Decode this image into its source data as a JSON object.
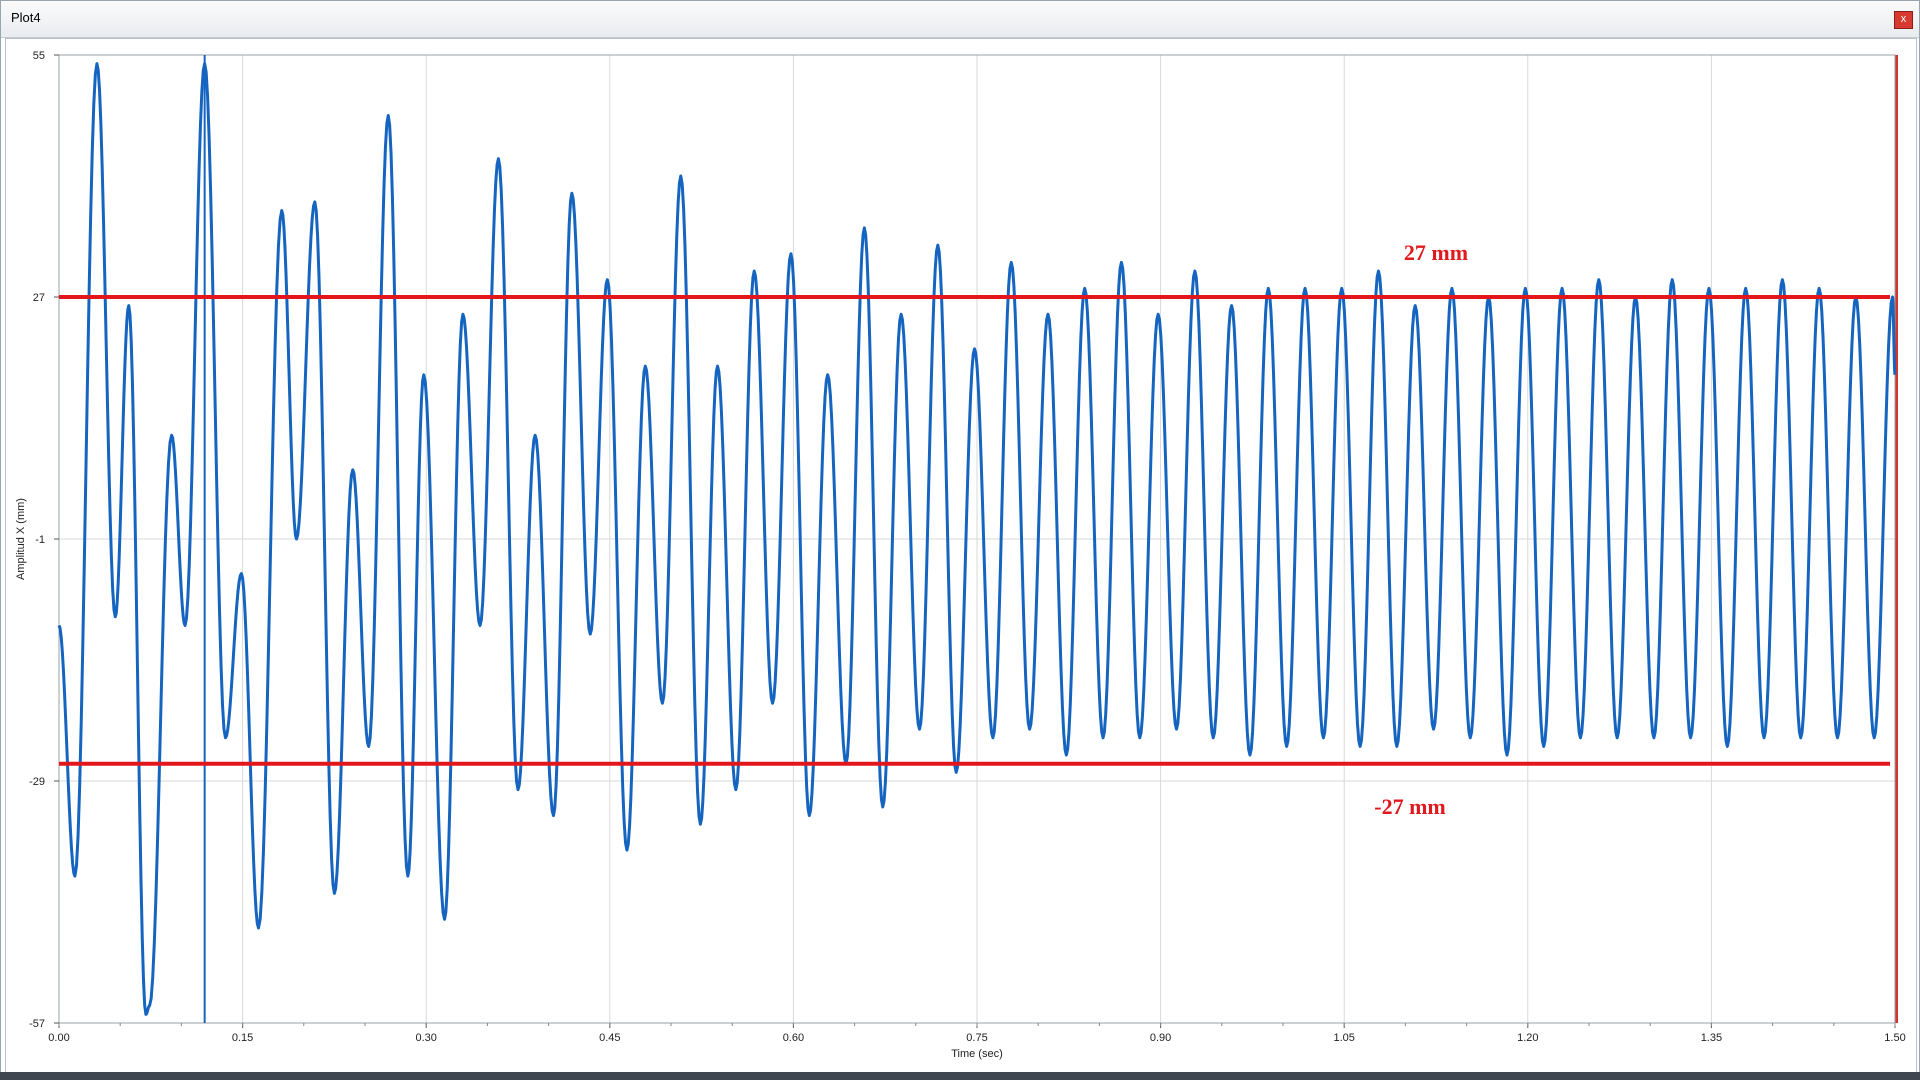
{
  "window": {
    "title": "Plot4",
    "close_label": "x"
  },
  "colors": {
    "series": "#1565c0",
    "reference": "#e3161b",
    "grid": "#d9d9d9"
  },
  "chart_data": {
    "type": "line",
    "xlabel": "Time (sec)",
    "ylabel": "Amplitud X (mm)",
    "xlim": [
      0,
      1.5
    ],
    "ylim": [
      -57,
      55
    ],
    "x_ticks": [
      "0.00",
      "0.15",
      "0.30",
      "0.45",
      "0.60",
      "0.75",
      "0.90",
      "1.05",
      "1.20",
      "1.35",
      "1.50"
    ],
    "y_ticks": [
      "55",
      "27",
      "-1",
      "-29",
      "-57"
    ],
    "grid": true,
    "vertical_marker_x": 0.119,
    "reference_lines": [
      {
        "y": 27,
        "label": "27 mm"
      },
      {
        "y": -27,
        "label": "-27 mm"
      }
    ],
    "series": [
      {
        "x": [
          0.0,
          0.013,
          0.031,
          0.046,
          0.057,
          0.071,
          0.074,
          0.092,
          0.103,
          0.119,
          0.136,
          0.149,
          0.163,
          0.182,
          0.194,
          0.209,
          0.225,
          0.24,
          0.253,
          0.269,
          0.285,
          0.298,
          0.315,
          0.33,
          0.344,
          0.359,
          0.375,
          0.389,
          0.404,
          0.419,
          0.434,
          0.448,
          0.464,
          0.479,
          0.493,
          0.508,
          0.524,
          0.538,
          0.553,
          0.568,
          0.583,
          0.598,
          0.613,
          0.628,
          0.643,
          0.658,
          0.673,
          0.688,
          0.703,
          0.718,
          0.733,
          0.748,
          0.763,
          0.778,
          0.793,
          0.808,
          0.823,
          0.838,
          0.853,
          0.868,
          0.883,
          0.898,
          0.913,
          0.928,
          0.943,
          0.958,
          0.973,
          0.988,
          1.003,
          1.018,
          1.033,
          1.048,
          1.063,
          1.078,
          1.093,
          1.108,
          1.123,
          1.138,
          1.153,
          1.168,
          1.183,
          1.198,
          1.213,
          1.228,
          1.243,
          1.258,
          1.273,
          1.288,
          1.303,
          1.318,
          1.333,
          1.348,
          1.363,
          1.378,
          1.393,
          1.408,
          1.423,
          1.438,
          1.453,
          1.468,
          1.483,
          1.498,
          1.5
        ],
        "y": [
          -11,
          -40,
          54,
          -10,
          26,
          -56,
          -55,
          11,
          -11,
          54,
          -24,
          -5,
          -46,
          37,
          -1,
          38,
          -42,
          7,
          -25,
          48,
          -40,
          18,
          -45,
          25,
          -11,
          43,
          -30,
          11,
          -33,
          39,
          -12,
          29,
          -37,
          19,
          -20,
          41,
          -34,
          19,
          -30,
          30,
          -20,
          32,
          -33,
          18,
          -27,
          35,
          -32,
          25,
          -23,
          33,
          -28,
          21,
          -24,
          31,
          -23,
          25,
          -26,
          28,
          -24,
          31,
          -24,
          25,
          -23,
          30,
          -24,
          26,
          -26,
          28,
          -25,
          28,
          -24,
          28,
          -25,
          30,
          -25,
          26,
          -23,
          28,
          -24,
          27,
          -26,
          28,
          -25,
          28,
          -24,
          29,
          -24,
          27,
          -24,
          29,
          -24,
          28,
          -25,
          28,
          -24,
          29,
          -24,
          28,
          -24,
          27,
          -24,
          27,
          18
        ]
      }
    ]
  }
}
